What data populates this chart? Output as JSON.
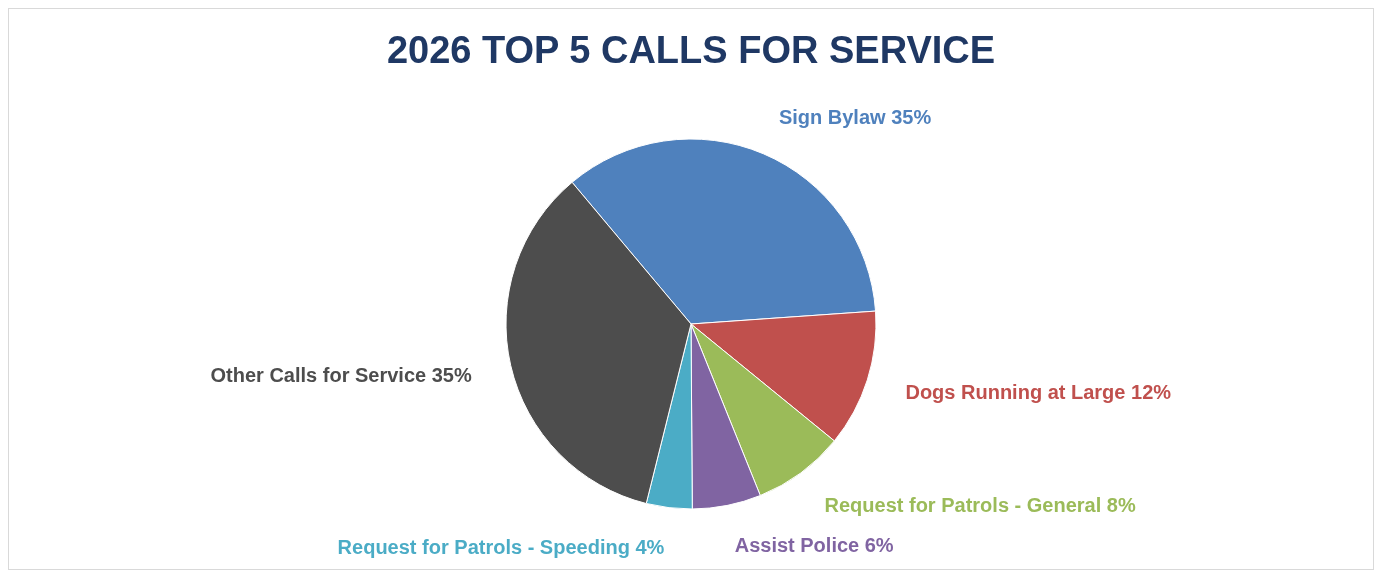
{
  "chart_data": {
    "type": "pie",
    "title": "2026 TOP 5 CALLS FOR SERVICE",
    "categories": [
      "Sign Bylaw",
      "Dogs Running at Large",
      "Request for Patrols - General",
      "Assist Police",
      "Request for Patrols - Speeding",
      "Other Calls for Service"
    ],
    "values": [
      35,
      12,
      8,
      6,
      4,
      35
    ],
    "value_labels": [
      "35%",
      "12%",
      "8%",
      "6%",
      "4%",
      "35%"
    ],
    "colors": [
      "#4f81bd",
      "#c0504d",
      "#9bbb59",
      "#8064a2",
      "#4bacc6",
      "#4d4d4d"
    ],
    "legend": false
  }
}
